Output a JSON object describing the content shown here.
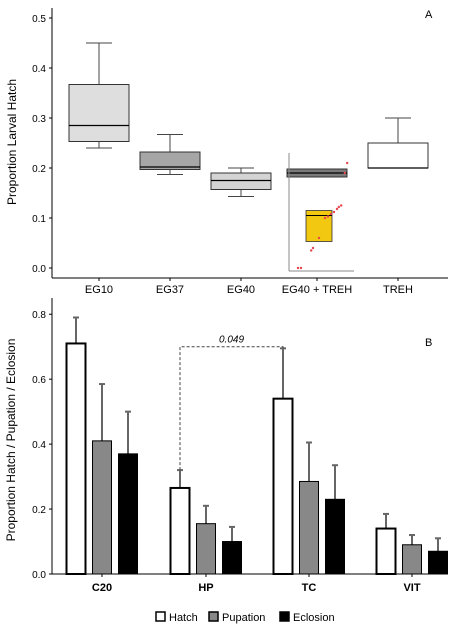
{
  "chart_data": [
    {
      "type": "box",
      "panel_label": "A",
      "title": "",
      "ylabel": "Proportion Larval Hatch",
      "xlabel": "",
      "ylim": [
        -0.02,
        0.52
      ],
      "yticks": [
        "0.0",
        "0.1",
        "0.2",
        "0.3",
        "0.4",
        "0.5"
      ],
      "categories": [
        "EG10",
        "EG37",
        "EG40",
        "EG40 + TREH",
        "TREH"
      ],
      "boxes": [
        {
          "category": "EG10",
          "min": 0.24,
          "q1": 0.253,
          "median": 0.285,
          "q3": 0.367,
          "max": 0.45,
          "fill": "#dedede"
        },
        {
          "category": "EG37",
          "min": 0.187,
          "q1": 0.197,
          "median": 0.202,
          "q3": 0.232,
          "max": 0.267,
          "fill": "#a6a6a6"
        },
        {
          "category": "EG40",
          "min": 0.143,
          "q1": 0.157,
          "median": 0.175,
          "q3": 0.19,
          "max": 0.2,
          "fill": "#d4d4d4"
        },
        {
          "category": "EG40 + TREH",
          "min": 0.182,
          "q1": 0.182,
          "median": 0.19,
          "q3": 0.198,
          "max": 0.198,
          "fill": "#7a7a7a"
        },
        {
          "category": "TREH",
          "min": 0.2,
          "q1": 0.2,
          "median": 0.2,
          "q3": 0.25,
          "max": 0.3,
          "fill": "#ffffff"
        }
      ],
      "inset": {
        "box": {
          "q1": 0.053,
          "median": 0.105,
          "q3": 0.115,
          "fill": "#f2c811"
        },
        "points_color": "#e8454f",
        "points": [
          [
            0.1,
            0.0
          ],
          [
            0.15,
            0.0
          ],
          [
            0.32,
            0.035
          ],
          [
            0.35,
            0.04
          ],
          [
            0.45,
            0.06
          ],
          [
            0.55,
            0.1
          ],
          [
            0.6,
            0.103
          ],
          [
            0.65,
            0.108
          ],
          [
            0.7,
            0.112
          ],
          [
            0.75,
            0.118
          ],
          [
            0.78,
            0.122
          ],
          [
            0.82,
            0.125
          ],
          [
            0.88,
            0.19
          ],
          [
            0.92,
            0.21
          ]
        ]
      }
    },
    {
      "type": "bar",
      "panel_label": "B",
      "title": "",
      "ylabel": "Proportion Hatch / Pupation / Eclosion",
      "xlabel": "",
      "ylim": [
        0,
        0.85
      ],
      "yticks": [
        "0.0",
        "0.2",
        "0.4",
        "0.6",
        "0.8"
      ],
      "categories": [
        "C20",
        "HP",
        "TC",
        "VIT"
      ],
      "series": [
        {
          "name": "Hatch",
          "values": [
            0.71,
            0.265,
            0.54,
            0.14
          ],
          "errors": [
            0.08,
            0.055,
            0.155,
            0.045
          ],
          "color": "#ffffff"
        },
        {
          "name": "Pupation",
          "values": [
            0.41,
            0.155,
            0.285,
            0.09
          ],
          "errors": [
            0.175,
            0.055,
            0.12,
            0.03
          ],
          "color": "#888888"
        },
        {
          "name": "Eclosion",
          "values": [
            0.37,
            0.1,
            0.23,
            0.07
          ],
          "errors": [
            0.13,
            0.045,
            0.105,
            0.04
          ],
          "color": "#000000"
        }
      ],
      "annotation": {
        "text": "0.049",
        "from": "HP",
        "to": "TC",
        "y": 0.7
      },
      "legend_placement": "bottom-center",
      "grid": false
    }
  ]
}
